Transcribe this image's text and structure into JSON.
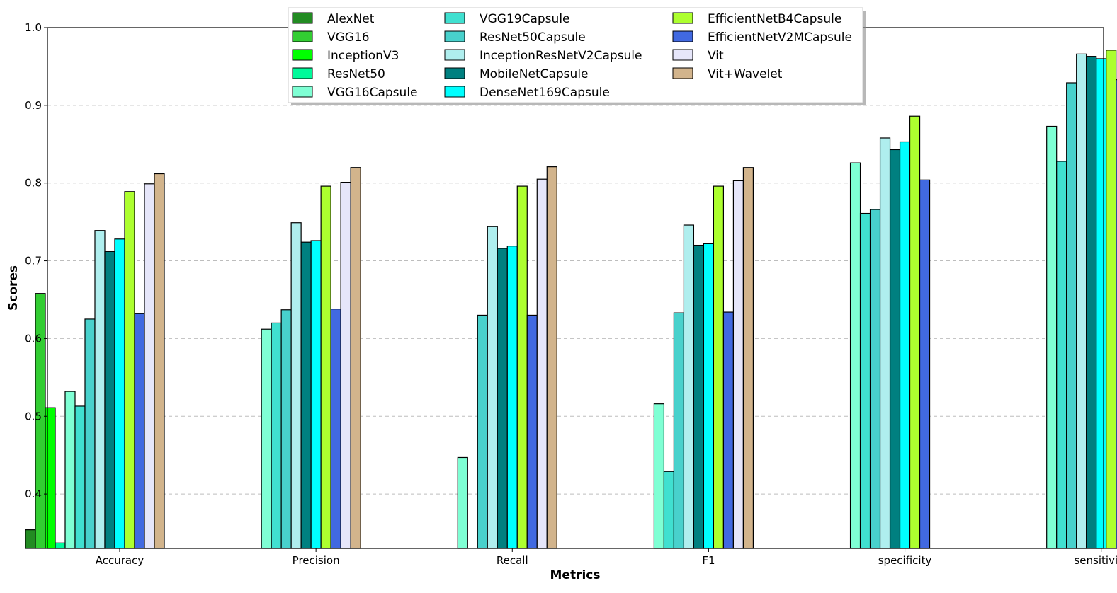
{
  "chart_data": {
    "type": "bar",
    "title": "",
    "xlabel": "Metrics",
    "ylabel": "Scores",
    "ylim": [
      0.33,
      1.0
    ],
    "yticks": [
      "0.4",
      "0.5",
      "0.6",
      "0.7",
      "0.8",
      "0.9",
      "1.0"
    ],
    "grid": "horizontal dashed",
    "legend_position": "top-center",
    "categories": [
      "Accuracy",
      "Precision",
      "Recall",
      "F1",
      "specificity",
      "sensitivity"
    ],
    "series": [
      {
        "name": "AlexNet",
        "color": "#228b22",
        "values": [
          0.354,
          null,
          null,
          null,
          null,
          null
        ]
      },
      {
        "name": "VGG16",
        "color": "#32cd32",
        "values": [
          0.658,
          null,
          null,
          null,
          null,
          null
        ]
      },
      {
        "name": "InceptionV3",
        "color": "#00ff00",
        "values": [
          0.511,
          null,
          null,
          null,
          null,
          null
        ]
      },
      {
        "name": "ResNet50",
        "color": "#00fa9a",
        "values": [
          0.337,
          null,
          null,
          null,
          null,
          null
        ]
      },
      {
        "name": "VGG16Capsule",
        "color": "#7fffd4",
        "values": [
          0.532,
          0.612,
          0.447,
          0.516,
          0.826,
          0.873
        ]
      },
      {
        "name": "VGG19Capsule",
        "color": "#40e0d0",
        "values": [
          0.513,
          0.62,
          null,
          0.429,
          0.761,
          0.828
        ]
      },
      {
        "name": "ResNet50Capsule",
        "color": "#48d1cc",
        "values": [
          0.625,
          0.637,
          0.63,
          0.633,
          0.766,
          0.929
        ]
      },
      {
        "name": "InceptionResNetV2Capsule",
        "color": "#afeeee",
        "values": [
          0.739,
          0.749,
          0.744,
          0.746,
          0.858,
          0.966
        ]
      },
      {
        "name": "MobileNetCapsule",
        "color": "#008080",
        "values": [
          0.712,
          0.724,
          0.716,
          0.72,
          0.843,
          0.963
        ]
      },
      {
        "name": "DenseNet169Capsule",
        "color": "#00ffff",
        "values": [
          0.728,
          0.726,
          0.719,
          0.722,
          0.853,
          0.96
        ]
      },
      {
        "name": "EfficientNetB4Capsule",
        "color": "#adff2f",
        "values": [
          0.789,
          0.796,
          0.796,
          0.796,
          0.886,
          0.971
        ]
      },
      {
        "name": "EfficientNetV2MCapsule",
        "color": "#4169e1",
        "values": [
          0.632,
          0.638,
          0.63,
          0.634,
          0.804,
          0.933
        ]
      },
      {
        "name": "Vit",
        "color": "#e6e6fa",
        "values": [
          0.799,
          0.801,
          0.805,
          0.803,
          null,
          null
        ]
      },
      {
        "name": "Vit+Wavelet",
        "color": "#d2b48c",
        "values": [
          0.812,
          0.82,
          0.821,
          0.82,
          null,
          null
        ]
      }
    ]
  }
}
